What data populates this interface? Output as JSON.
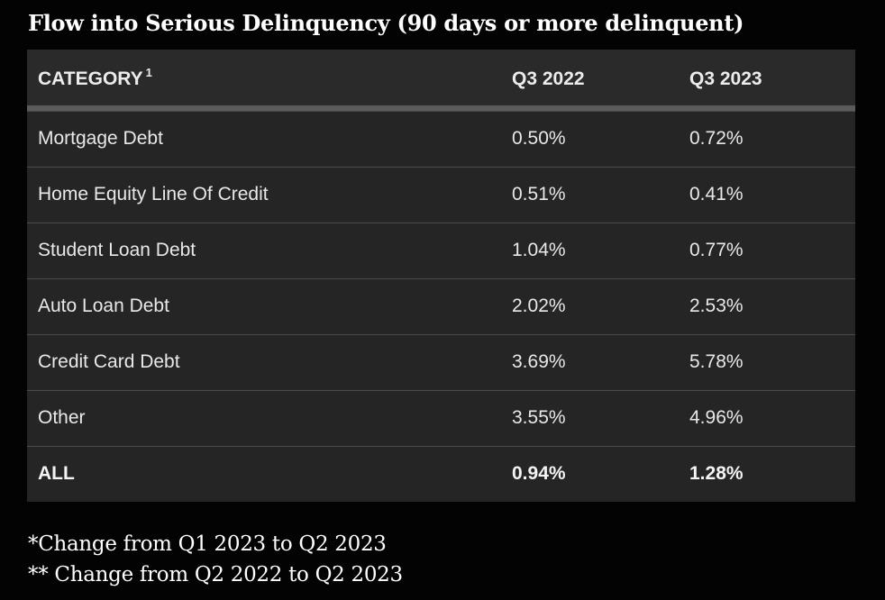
{
  "title": "Flow into Serious Delinquency (90 days or more delinquent)",
  "table": {
    "headers": {
      "category": "CATEGORY",
      "category_note": "1",
      "col1": "Q3 2022",
      "col2": "Q3 2023"
    },
    "rows": [
      {
        "category": "Mortgage Debt",
        "q3_2022": "0.50%",
        "q3_2023": "0.72%"
      },
      {
        "category": "Home Equity Line Of Credit",
        "q3_2022": "0.51%",
        "q3_2023": "0.41%"
      },
      {
        "category": "Student Loan Debt",
        "q3_2022": "1.04%",
        "q3_2023": "0.77%"
      },
      {
        "category": "Auto Loan Debt",
        "q3_2022": "2.02%",
        "q3_2023": "2.53%"
      },
      {
        "category": "Credit Card Debt",
        "q3_2022": "3.69%",
        "q3_2023": "5.78%"
      },
      {
        "category": "Other",
        "q3_2022": "3.55%",
        "q3_2023": "4.96%"
      },
      {
        "category": "ALL",
        "q3_2022": "0.94%",
        "q3_2023": "1.28%"
      }
    ]
  },
  "footnotes": [
    "*Change from Q1 2023 to Q2 2023",
    "** Change from Q2 2022 to Q2 2023"
  ],
  "chart_data": {
    "type": "table",
    "title": "Flow into Serious Delinquency (90 days or more delinquent)",
    "columns": [
      "CATEGORY",
      "Q3 2022",
      "Q3 2023"
    ],
    "categories": [
      "Mortgage Debt",
      "Home Equity Line Of Credit",
      "Student Loan Debt",
      "Auto Loan Debt",
      "Credit Card Debt",
      "Other",
      "ALL"
    ],
    "series": [
      {
        "name": "Q3 2022",
        "values": [
          0.5,
          0.51,
          1.04,
          2.02,
          3.69,
          3.55,
          0.94
        ]
      },
      {
        "name": "Q3 2023",
        "values": [
          0.72,
          0.41,
          0.77,
          2.53,
          5.78,
          4.96,
          1.28
        ]
      }
    ],
    "unit": "%"
  },
  "colors": {
    "page_background": "#030303",
    "table_background": "#252525",
    "header_rule": "#5b5b5b",
    "text": "#ffffff"
  }
}
